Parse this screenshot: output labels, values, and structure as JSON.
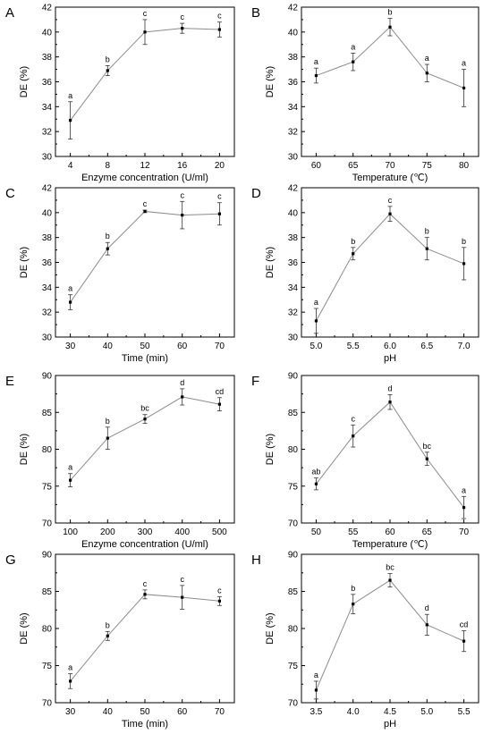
{
  "figure": {
    "background": "#ffffff",
    "line_color": "#8c8c8c",
    "marker_color": "#000000",
    "errorbar_color": "#333333"
  },
  "chart_data": [
    {
      "panel": "A",
      "type": "line",
      "xlabel": "Enzyme concentration (U/ml)",
      "ylabel": "DE (%)",
      "x": [
        4,
        8,
        12,
        16,
        20
      ],
      "xticks": [
        "4",
        "8",
        "12",
        "16",
        "20"
      ],
      "ylim": [
        30,
        42
      ],
      "yticks": [
        30,
        32,
        34,
        36,
        38,
        40,
        42
      ],
      "y": [
        32.9,
        36.9,
        40.0,
        40.3,
        40.2
      ],
      "err": [
        1.5,
        0.4,
        1.0,
        0.4,
        0.6
      ],
      "labels": [
        "a",
        "b",
        "c",
        "c",
        "c"
      ]
    },
    {
      "panel": "B",
      "type": "line",
      "xlabel": "Temperature (℃)",
      "ylabel": "DE (%)",
      "x": [
        60,
        65,
        70,
        75,
        80
      ],
      "xticks": [
        "60",
        "65",
        "70",
        "75",
        "80"
      ],
      "ylim": [
        30,
        42
      ],
      "yticks": [
        30,
        32,
        34,
        36,
        38,
        40,
        42
      ],
      "y": [
        36.5,
        37.6,
        40.4,
        36.7,
        35.5
      ],
      "err": [
        0.6,
        0.7,
        0.7,
        0.7,
        1.5
      ],
      "labels": [
        "a",
        "a",
        "b",
        "a",
        "a"
      ]
    },
    {
      "panel": "C",
      "type": "line",
      "xlabel": "Time (min)",
      "ylabel": "DE (%)",
      "x": [
        30,
        40,
        50,
        60,
        70
      ],
      "xticks": [
        "30",
        "40",
        "50",
        "60",
        "70"
      ],
      "ylim": [
        30,
        42
      ],
      "yticks": [
        30,
        32,
        34,
        36,
        38,
        40,
        42
      ],
      "y": [
        32.8,
        37.1,
        40.1,
        39.8,
        39.9
      ],
      "err": [
        0.6,
        0.5,
        0.1,
        1.1,
        0.9
      ],
      "labels": [
        "a",
        "b",
        "c",
        "c",
        "c"
      ]
    },
    {
      "panel": "D",
      "type": "line",
      "xlabel": "pH",
      "ylabel": "DE (%)",
      "x": [
        5.0,
        5.5,
        6.0,
        6.5,
        7.0
      ],
      "xticks": [
        "5.0",
        "5.5",
        "6.0",
        "6.5",
        "7.0"
      ],
      "ylim": [
        30,
        42
      ],
      "yticks": [
        30,
        32,
        34,
        36,
        38,
        40,
        42
      ],
      "y": [
        31.3,
        36.7,
        39.9,
        37.1,
        35.9
      ],
      "err": [
        1.0,
        0.5,
        0.6,
        0.9,
        1.3
      ],
      "labels": [
        "a",
        "b",
        "c",
        "b",
        "b"
      ]
    },
    {
      "panel": "E",
      "type": "line",
      "xlabel": "Enzyme concentration (U/ml)",
      "ylabel": "DE (%)",
      "x": [
        100,
        200,
        300,
        400,
        500
      ],
      "xticks": [
        "100",
        "200",
        "300",
        "400",
        "500"
      ],
      "ylim": [
        70,
        90
      ],
      "yticks": [
        70,
        75,
        80,
        85,
        90
      ],
      "y": [
        75.8,
        81.5,
        84.1,
        87.1,
        86.1
      ],
      "err": [
        0.9,
        1.5,
        0.6,
        1.1,
        0.9
      ],
      "labels": [
        "a",
        "b",
        "bc",
        "d",
        "cd"
      ]
    },
    {
      "panel": "F",
      "type": "line",
      "xlabel": "Temperature (℃)",
      "ylabel": "DE (%)",
      "x": [
        50,
        55,
        60,
        65,
        70
      ],
      "xticks": [
        "50",
        "55",
        "60",
        "65",
        "70"
      ],
      "ylim": [
        70,
        90
      ],
      "yticks": [
        70,
        75,
        80,
        85,
        90
      ],
      "y": [
        75.3,
        81.8,
        86.4,
        78.7,
        72.1
      ],
      "err": [
        0.8,
        1.5,
        1.0,
        0.9,
        1.5
      ],
      "labels": [
        "ab",
        "c",
        "d",
        "bc",
        "a"
      ]
    },
    {
      "panel": "G",
      "type": "line",
      "xlabel": "Time (min)",
      "ylabel": "DE (%)",
      "x": [
        30,
        40,
        50,
        60,
        70
      ],
      "xticks": [
        "30",
        "40",
        "50",
        "60",
        "70"
      ],
      "ylim": [
        70,
        90
      ],
      "yticks": [
        70,
        75,
        80,
        85,
        90
      ],
      "y": [
        72.9,
        79.0,
        84.6,
        84.2,
        83.7
      ],
      "err": [
        1.0,
        0.6,
        0.6,
        1.6,
        0.6
      ],
      "labels": [
        "a",
        "b",
        "c",
        "c",
        "c"
      ]
    },
    {
      "panel": "H",
      "type": "line",
      "xlabel": "pH",
      "ylabel": "DE (%)",
      "x": [
        3.5,
        4.0,
        4.5,
        5.0,
        5.5
      ],
      "xticks": [
        "3.5",
        "4.0",
        "4.5",
        "5.0",
        "5.5"
      ],
      "ylim": [
        70,
        90
      ],
      "yticks": [
        70,
        75,
        80,
        85,
        90
      ],
      "y": [
        71.7,
        83.3,
        86.5,
        80.5,
        78.3
      ],
      "err": [
        1.2,
        1.3,
        0.9,
        1.4,
        1.4
      ],
      "labels": [
        "a",
        "b",
        "bc",
        "d",
        "cd"
      ]
    }
  ]
}
